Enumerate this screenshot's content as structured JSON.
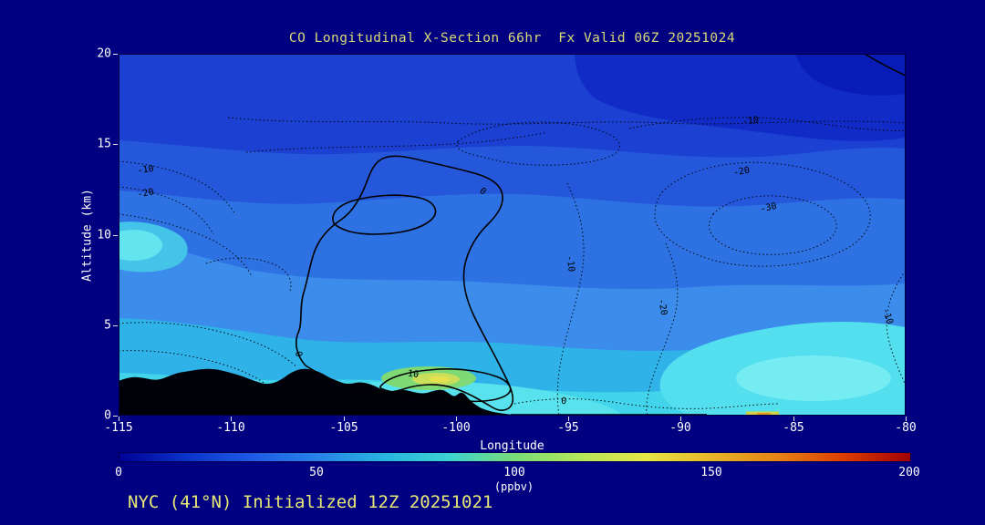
{
  "page": {
    "background_color": "#000080"
  },
  "chart_data": {
    "type": "heatmap",
    "variant": "filled-contour longitude-altitude cross-section",
    "title": "CO Longitudinal X-Section 66hr  Fx Valid 06Z 20251024",
    "footer": "NYC (41°N) Initialized 12Z 20251021",
    "xlabel": "Longitude",
    "ylabel": "Altitude (km)",
    "xlim": [
      -115,
      -80
    ],
    "ylim": [
      0,
      20
    ],
    "x_tick_labels": [
      "-115",
      "-110",
      "-105",
      "-100",
      "-95",
      "-90",
      "-85",
      "-80"
    ],
    "y_tick_labels": [
      "0",
      "5",
      "10",
      "15",
      "20"
    ],
    "grid": false,
    "colorbar": {
      "label": "(ppbv)",
      "min": 0,
      "max": 200,
      "tick_labels": [
        "0",
        "50",
        "100",
        "150",
        "200"
      ],
      "colors": [
        "#000096",
        "#0a32c8",
        "#1e5ae6",
        "#2882e8",
        "#28b4e0",
        "#3cd2d2",
        "#78dc78",
        "#b4e65a",
        "#e6e646",
        "#e6b428",
        "#e68214",
        "#dc3c00",
        "#a00000"
      ]
    },
    "contours": {
      "solid_levels": [
        0,
        10
      ],
      "dotted_levels": [
        -30,
        -20,
        -10,
        0
      ],
      "labels": [
        {
          "text": "-10",
          "lon": -113.8,
          "alt": 13.6,
          "rot": -8,
          "style": "dotted"
        },
        {
          "text": "-20",
          "lon": -113.8,
          "alt": 12.3,
          "rot": -10,
          "style": "dotted"
        },
        {
          "text": "0",
          "lon": -98.8,
          "alt": 12.4,
          "rot": 38,
          "style": "solid"
        },
        {
          "text": "-10",
          "lon": -86.9,
          "alt": 16.3,
          "rot": -6,
          "style": "dotted"
        },
        {
          "text": "-20",
          "lon": -87.3,
          "alt": 13.5,
          "rot": -10,
          "style": "dotted"
        },
        {
          "text": "-30",
          "lon": -86.1,
          "alt": 11.5,
          "rot": -12,
          "style": "dotted"
        },
        {
          "text": "-10",
          "lon": -94.9,
          "alt": 8.4,
          "rot": 82,
          "style": "dotted"
        },
        {
          "text": "-20",
          "lon": -90.8,
          "alt": 6.0,
          "rot": 80,
          "style": "dotted"
        },
        {
          "text": "-10",
          "lon": -80.8,
          "alt": 5.5,
          "rot": 72,
          "style": "dotted"
        },
        {
          "text": "0",
          "lon": -107.0,
          "alt": 3.4,
          "rot": 78,
          "style": "solid"
        },
        {
          "text": "10",
          "lon": -101.9,
          "alt": 2.3,
          "rot": 6,
          "style": "solid"
        },
        {
          "text": "0",
          "lon": -95.2,
          "alt": 0.8,
          "rot": 4,
          "style": "dotted"
        }
      ]
    },
    "shading_estimate_ppbv": {
      "upper_troposphere": "10-30",
      "mid_troposphere": "30-50",
      "boundary_layer": "50-70",
      "surface_maximum": "80-110 near 101W at ~2 km"
    },
    "terrain": "black surface silhouette up to ~2.6 km between 115W and ~99W"
  }
}
